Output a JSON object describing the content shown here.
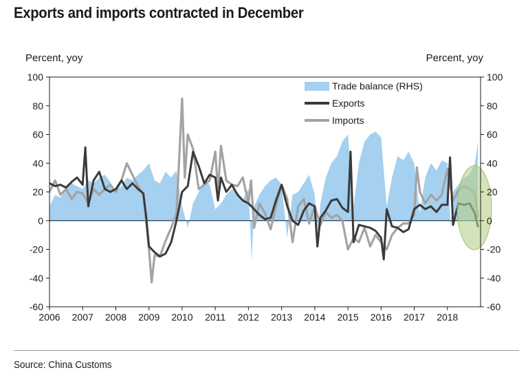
{
  "header": {
    "title": "Exports and imports contracted in December"
  },
  "footer": {
    "source": "Source: China Customs"
  },
  "colors": {
    "trade_balance": "#a6d0ef",
    "exports": "#3a3a3a",
    "imports": "#a3a3a3",
    "highlight": "#b8d08a"
  },
  "chart_data": {
    "type": "line",
    "ylabel_left": "Percent, yoy",
    "ylabel_right": "Percent, yoy",
    "ylim": [
      -60,
      100
    ],
    "ylim_right": [
      -60,
      100
    ],
    "yticks": [
      -60,
      -40,
      -20,
      0,
      20,
      40,
      60,
      80,
      100
    ],
    "xlim": [
      2006,
      2019
    ],
    "xticks": [
      2006,
      2007,
      2008,
      2009,
      2010,
      2011,
      2012,
      2013,
      2014,
      2015,
      2016,
      2017,
      2018
    ],
    "xtick_labels": [
      "2006",
      "2007",
      "2008",
      "2009",
      "2010",
      "2011",
      "2012",
      "2013",
      "2014",
      "2015",
      "2016",
      "2017",
      "2018"
    ],
    "grid": false,
    "legend_position": "top-right",
    "legend": [
      "Trade balance (RHS)",
      "Exports",
      "Imports"
    ],
    "series": [
      {
        "name": "Trade balance (RHS)",
        "kind": "area",
        "axis": "right",
        "x": [
          2006.0,
          2006.17,
          2006.33,
          2006.5,
          2006.67,
          2006.83,
          2007.0,
          2007.17,
          2007.33,
          2007.5,
          2007.67,
          2007.83,
          2008.0,
          2008.17,
          2008.33,
          2008.5,
          2008.67,
          2008.83,
          2009.0,
          2009.17,
          2009.33,
          2009.5,
          2009.67,
          2009.83,
          2010.0,
          2010.17,
          2010.33,
          2010.5,
          2010.67,
          2010.83,
          2011.0,
          2011.17,
          2011.33,
          2011.5,
          2011.67,
          2011.83,
          2012.0,
          2012.1,
          2012.17,
          2012.33,
          2012.5,
          2012.67,
          2012.83,
          2013.0,
          2013.17,
          2013.33,
          2013.5,
          2013.67,
          2013.83,
          2014.0,
          2014.1,
          2014.17,
          2014.33,
          2014.5,
          2014.67,
          2014.83,
          2015.0,
          2015.17,
          2015.33,
          2015.5,
          2015.67,
          2015.83,
          2016.0,
          2016.17,
          2016.33,
          2016.5,
          2016.67,
          2016.83,
          2017.0,
          2017.17,
          2017.33,
          2017.5,
          2017.67,
          2017.83,
          2018.0,
          2018.1,
          2018.17,
          2018.33,
          2018.5,
          2018.67,
          2018.83,
          2018.92
        ],
        "values": [
          10,
          18,
          16,
          22,
          26,
          24,
          22,
          28,
          26,
          30,
          32,
          27,
          20,
          24,
          30,
          28,
          32,
          35,
          40,
          28,
          26,
          34,
          30,
          35,
          10,
          -5,
          12,
          20,
          28,
          25,
          8,
          12,
          18,
          22,
          20,
          15,
          22,
          -28,
          10,
          18,
          24,
          28,
          30,
          25,
          -12,
          18,
          20,
          26,
          32,
          18,
          -10,
          12,
          30,
          40,
          45,
          55,
          60,
          10,
          40,
          55,
          60,
          62,
          58,
          10,
          30,
          45,
          42,
          48,
          40,
          5,
          30,
          40,
          35,
          42,
          40,
          -5,
          20,
          25,
          30,
          32,
          40,
          55
        ]
      },
      {
        "name": "Exports",
        "kind": "line",
        "axis": "left",
        "x": [
          2006.0,
          2006.17,
          2006.33,
          2006.5,
          2006.67,
          2006.83,
          2007.0,
          2007.08,
          2007.17,
          2007.33,
          2007.5,
          2007.67,
          2007.83,
          2008.0,
          2008.17,
          2008.33,
          2008.5,
          2008.67,
          2008.83,
          2008.92,
          2009.0,
          2009.17,
          2009.33,
          2009.5,
          2009.67,
          2009.83,
          2010.0,
          2010.17,
          2010.33,
          2010.5,
          2010.67,
          2010.83,
          2011.0,
          2011.08,
          2011.17,
          2011.33,
          2011.5,
          2011.67,
          2011.83,
          2012.0,
          2012.17,
          2012.33,
          2012.5,
          2012.67,
          2012.83,
          2013.0,
          2013.17,
          2013.33,
          2013.5,
          2013.67,
          2013.83,
          2014.0,
          2014.08,
          2014.17,
          2014.33,
          2014.5,
          2014.67,
          2014.83,
          2015.0,
          2015.08,
          2015.17,
          2015.33,
          2015.5,
          2015.67,
          2015.83,
          2016.0,
          2016.08,
          2016.17,
          2016.33,
          2016.5,
          2016.67,
          2016.83,
          2017.0,
          2017.17,
          2017.33,
          2017.5,
          2017.67,
          2017.83,
          2018.0,
          2018.08,
          2018.17,
          2018.33,
          2018.5,
          2018.67,
          2018.83,
          2018.92
        ],
        "values": [
          26,
          24,
          25,
          23,
          27,
          30,
          25,
          51,
          10,
          28,
          34,
          22,
          20,
          22,
          28,
          22,
          26,
          22,
          19,
          2,
          -18,
          -22,
          -25,
          -23,
          -15,
          0,
          20,
          24,
          48,
          38,
          26,
          32,
          30,
          14,
          30,
          20,
          25,
          18,
          14,
          12,
          8,
          4,
          1,
          2,
          14,
          25,
          10,
          0,
          -3,
          7,
          12,
          10,
          -18,
          2,
          7,
          14,
          15,
          9,
          6,
          48,
          -15,
          -3,
          -4,
          -5,
          -7,
          -12,
          -27,
          8,
          -4,
          -5,
          -8,
          -6,
          8,
          11,
          8,
          10,
          6,
          11,
          11,
          44,
          -3,
          12,
          11,
          12,
          5,
          -4
        ]
      },
      {
        "name": "Imports",
        "kind": "line",
        "axis": "left",
        "x": [
          2006.0,
          2006.17,
          2006.33,
          2006.5,
          2006.67,
          2006.83,
          2007.0,
          2007.17,
          2007.33,
          2007.5,
          2007.67,
          2007.83,
          2008.0,
          2008.17,
          2008.33,
          2008.5,
          2008.67,
          2008.83,
          2008.92,
          2009.0,
          2009.08,
          2009.17,
          2009.33,
          2009.5,
          2009.67,
          2009.83,
          2010.0,
          2010.08,
          2010.17,
          2010.33,
          2010.5,
          2010.67,
          2010.83,
          2011.0,
          2011.08,
          2011.17,
          2011.33,
          2011.5,
          2011.67,
          2011.83,
          2012.0,
          2012.08,
          2012.17,
          2012.33,
          2012.5,
          2012.67,
          2012.83,
          2013.0,
          2013.17,
          2013.33,
          2013.5,
          2013.67,
          2013.83,
          2014.0,
          2014.17,
          2014.33,
          2014.5,
          2014.67,
          2014.83,
          2015.0,
          2015.17,
          2015.33,
          2015.5,
          2015.67,
          2015.83,
          2016.0,
          2016.17,
          2016.33,
          2016.5,
          2016.67,
          2016.83,
          2017.0,
          2017.08,
          2017.17,
          2017.33,
          2017.5,
          2017.67,
          2017.83,
          2018.0,
          2018.17,
          2018.33,
          2018.5,
          2018.67,
          2018.83,
          2018.92
        ],
        "values": [
          20,
          28,
          18,
          22,
          15,
          20,
          19,
          12,
          22,
          18,
          22,
          25,
          20,
          28,
          40,
          32,
          24,
          18,
          -2,
          -20,
          -43,
          -24,
          -25,
          -14,
          -5,
          5,
          85,
          30,
          60,
          50,
          22,
          25,
          28,
          48,
          20,
          52,
          28,
          25,
          24,
          30,
          12,
          28,
          -5,
          12,
          5,
          -6,
          10,
          25,
          15,
          -15,
          10,
          15,
          -2,
          10,
          -3,
          6,
          2,
          4,
          0,
          -20,
          -12,
          -15,
          -5,
          -18,
          -10,
          -15,
          -20,
          -10,
          -5,
          -2,
          -2,
          4,
          37,
          20,
          12,
          18,
          14,
          18,
          36,
          14,
          21,
          24,
          22,
          19,
          3
        ]
      }
    ]
  }
}
